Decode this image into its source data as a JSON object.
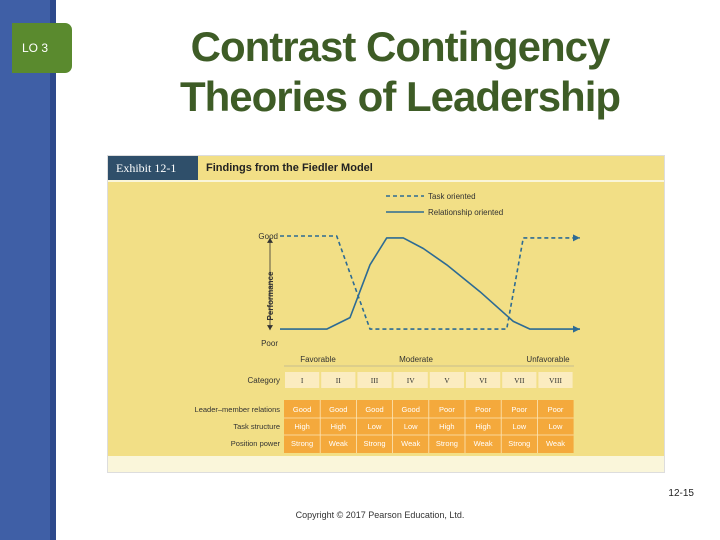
{
  "slide": {
    "lo_label": "LO 3",
    "title_line1": "Contrast Contingency",
    "title_line2": "Theories of Leadership",
    "page_number": "12-15",
    "copyright": "Copyright © 2017 Pearson Education, Ltd."
  },
  "exhibit": {
    "tag": "Exhibit 12-1",
    "title": "Findings from the Fiedler Model"
  },
  "colors": {
    "title_green": "#3e5c26",
    "side_bar_blue": "#3f5fa6",
    "lo_tab_green": "#5a8a2e",
    "chart_bg_yellow": "#f2df86",
    "line_blue": "#2d6b94",
    "table_orange": "#f4a93c"
  },
  "chart_data": {
    "type": "line",
    "ylabel": "Performance",
    "y_tick_labels": [
      "Good",
      "Poor"
    ],
    "favorability_labels": [
      "Favorable",
      "Moderate",
      "Unfavorable"
    ],
    "x_label": "Category",
    "categories": [
      "I",
      "II",
      "III",
      "IV",
      "V",
      "VI",
      "VII",
      "VIII"
    ],
    "x_range": [
      0,
      9
    ],
    "ylim": [
      0,
      1
    ],
    "legend_position": "top-right",
    "series": [
      {
        "name": "Task oriented",
        "style": "dashed",
        "x": [
          0,
          1.7,
          2.7,
          3.2,
          6.8,
          7.3,
          9
        ],
        "values": [
          1,
          1,
          0.03,
          0.03,
          0.03,
          0.98,
          0.98
        ]
      },
      {
        "name": "Relationship oriented",
        "style": "solid",
        "x": [
          0,
          1.4,
          2.1,
          2.7,
          3.2,
          3.7,
          4.3,
          5,
          6,
          7,
          7.5,
          9
        ],
        "values": [
          0.03,
          0.03,
          0.15,
          0.7,
          0.98,
          0.98,
          0.87,
          0.7,
          0.42,
          0.11,
          0.03,
          0.03
        ]
      }
    ],
    "table": {
      "rows": [
        {
          "label": "Leader–member relations",
          "values": [
            "Good",
            "Good",
            "Good",
            "Good",
            "Poor",
            "Poor",
            "Poor",
            "Poor"
          ]
        },
        {
          "label": "Task structure",
          "values": [
            "High",
            "High",
            "Low",
            "Low",
            "High",
            "High",
            "Low",
            "Low"
          ]
        },
        {
          "label": "Position power",
          "values": [
            "Strong",
            "Weak",
            "Strong",
            "Weak",
            "Strong",
            "Weak",
            "Strong",
            "Weak"
          ]
        }
      ]
    }
  }
}
